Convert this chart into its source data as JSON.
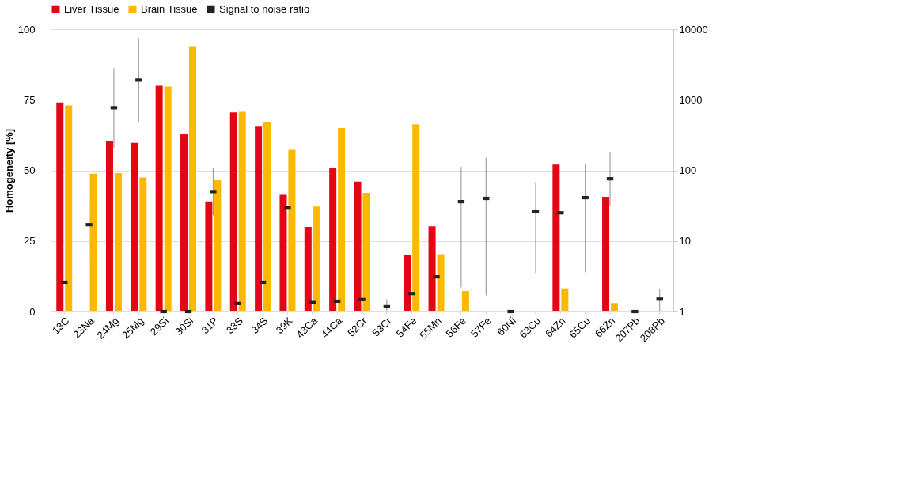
{
  "chart_data": {
    "type": "bar",
    "ylabel": "Homogeneity [%]",
    "categories": [
      "13C",
      "23Na",
      "24Mg",
      "25Mg",
      "29Si",
      "30Si",
      "31P",
      "33S",
      "34S",
      "39K",
      "43Ca",
      "44Ca",
      "52Cr",
      "53Cr",
      "54Fe",
      "55Mn",
      "56Fe",
      "57Fe",
      "60Ni",
      "63Cu",
      "64Zn",
      "65Cu",
      "66Zn",
      "207Pb",
      "208Pb"
    ],
    "series": [
      {
        "name": "Liver Tissue",
        "color": "#e30613",
        "values": [
          74,
          null,
          60.5,
          59.7,
          80,
          63,
          39,
          70.5,
          65.5,
          41.3,
          30,
          51,
          46,
          null,
          20,
          30.2,
          null,
          null,
          null,
          null,
          52,
          null,
          40.6,
          null,
          null
        ]
      },
      {
        "name": "Brain Tissue",
        "color": "#ffb800",
        "values": [
          73,
          48.8,
          49,
          47.5,
          79.7,
          94,
          46.5,
          70.7,
          67.2,
          57.3,
          37.2,
          65,
          42,
          null,
          66.3,
          20.3,
          7.3,
          null,
          null,
          null,
          8.2,
          null,
          3,
          null,
          null
        ]
      },
      {
        "name": "Signal to noise ratio",
        "type": "scatter",
        "axis": "y2",
        "color": "#222222",
        "values": [
          2.6,
          17,
          770,
          1900,
          1.0,
          1.0,
          50,
          1.3,
          2.6,
          30,
          1.34,
          1.4,
          1.48,
          1.17,
          1.8,
          3.1,
          36,
          40,
          1.0,
          26,
          25,
          41,
          76,
          1.0,
          1.5
        ],
        "errors": [
          null,
          [
            5,
            38
          ],
          [
            210,
            2800
          ],
          [
            490,
            7400
          ],
          null,
          null,
          [
            23,
            107
          ],
          null,
          null,
          null,
          null,
          null,
          null,
          [
            1.0,
            1.5
          ],
          null,
          null,
          [
            2.2,
            112
          ],
          [
            1.7,
            150
          ],
          null,
          [
            3.5,
            68
          ],
          null,
          [
            3.6,
            125
          ],
          [
            32,
            182
          ],
          null,
          [
            1.0,
            2.1
          ]
        ]
      }
    ],
    "ylim": [
      0,
      100
    ],
    "yticks": [
      0,
      25,
      50,
      75,
      100
    ],
    "y2lim": [
      1,
      10000
    ],
    "y2ticks": [
      1,
      10,
      100,
      1000,
      10000
    ],
    "log": "y2",
    "grid": "y",
    "legend": "top"
  }
}
